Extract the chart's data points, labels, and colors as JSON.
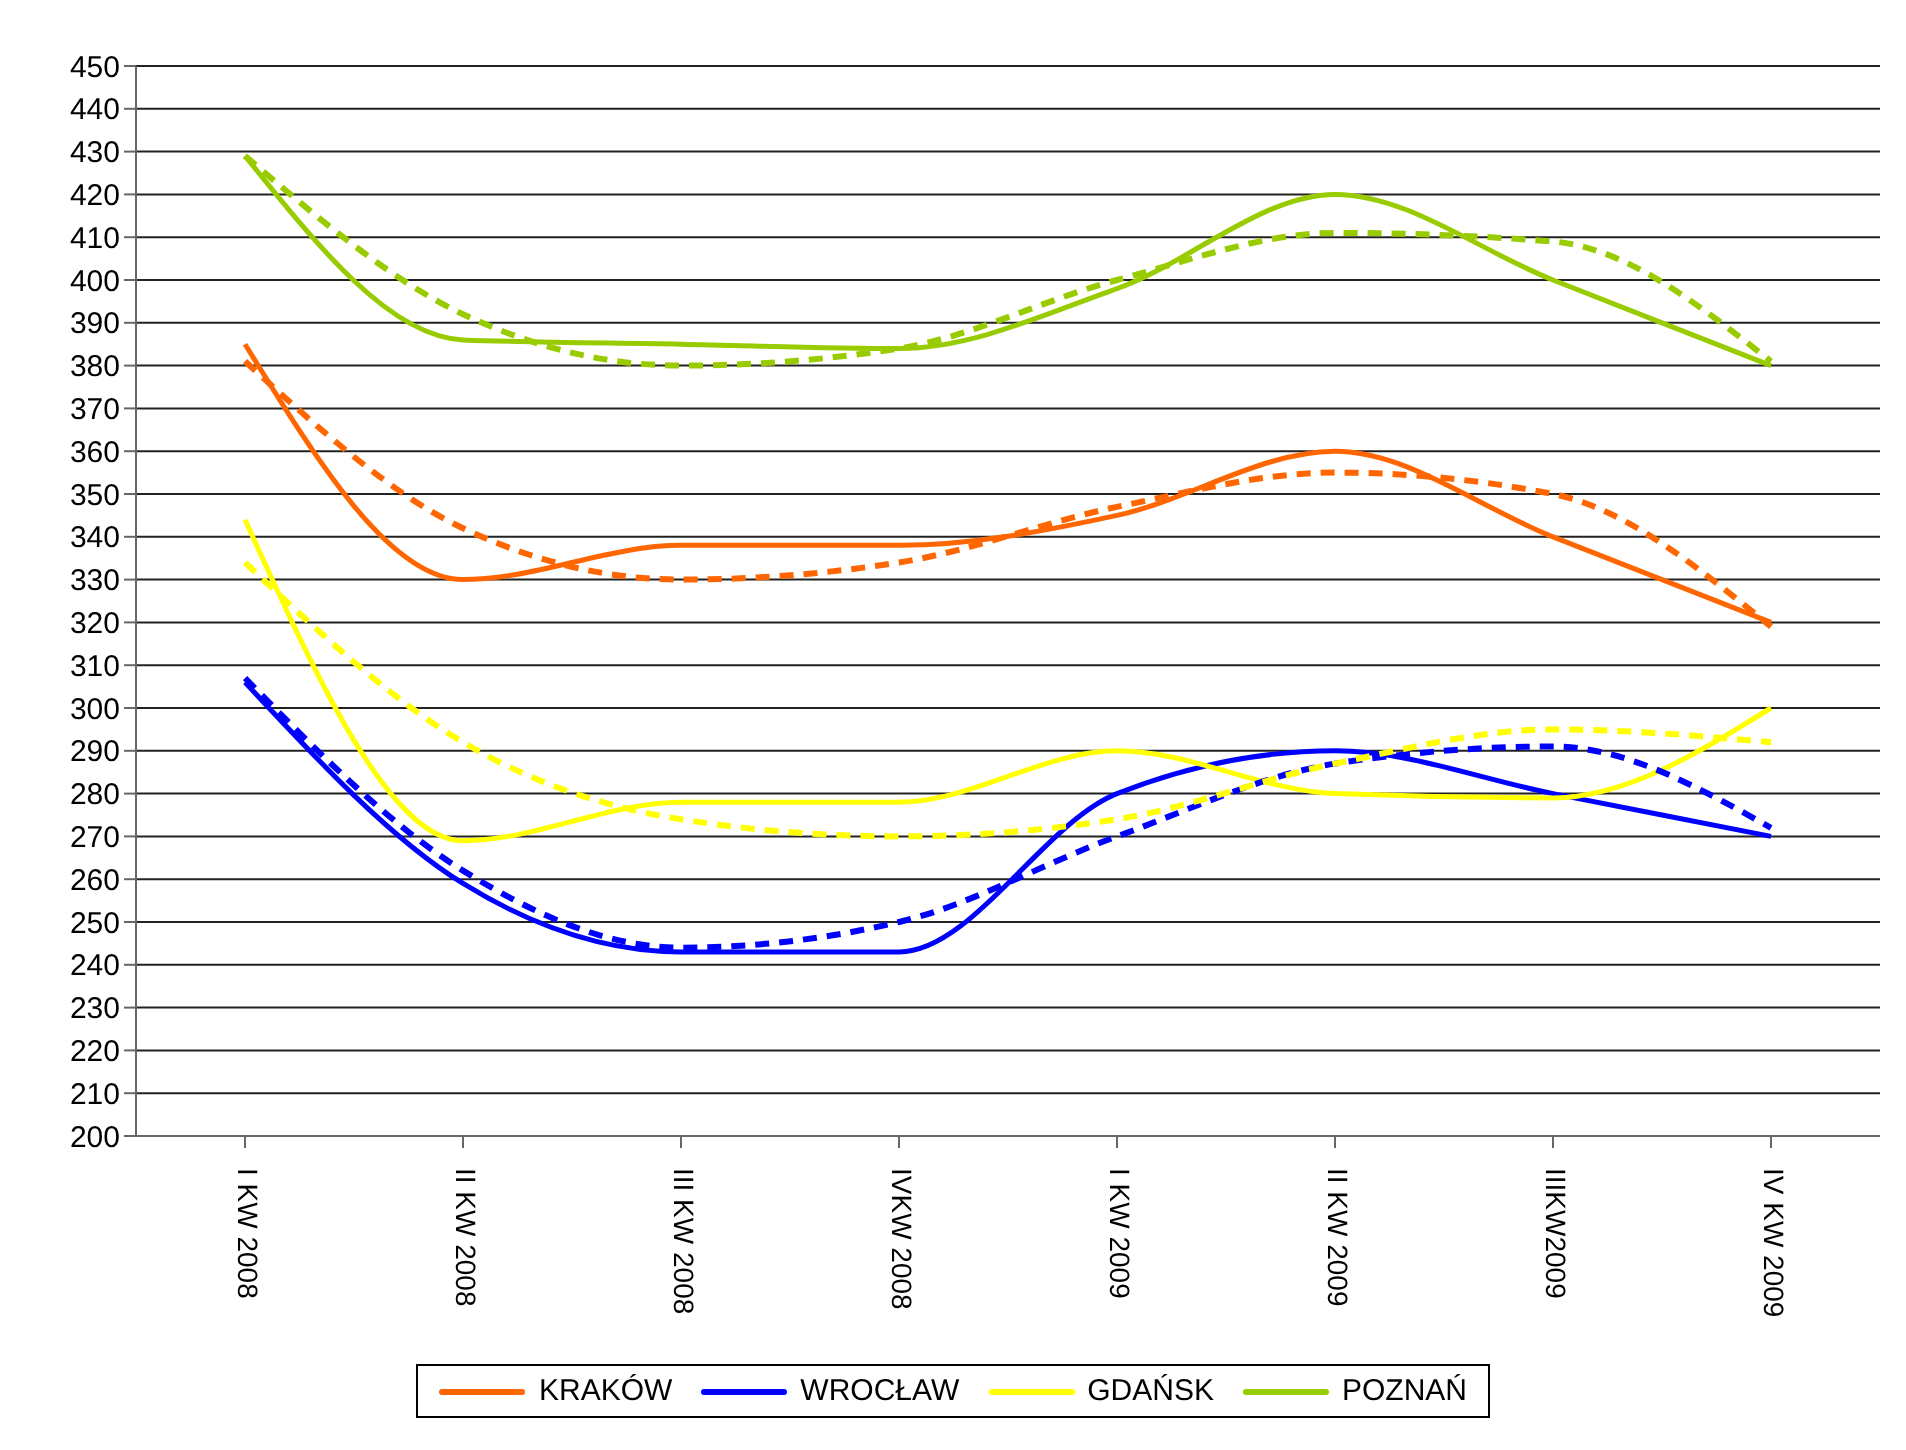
{
  "chart_data": {
    "type": "line",
    "categories": [
      "I KW 2008",
      "II KW 2008",
      "III KW 2008",
      "IVKW 2008",
      "I KW 2009",
      "II KW 2009",
      "IIIKW2009",
      "IV KW 2009"
    ],
    "series": [
      {
        "name": "KRAKÓW",
        "color": "#ff6600",
        "values": [
          385,
          330,
          338,
          338,
          345,
          360,
          340,
          320
        ]
      },
      {
        "name": "WROCŁAW",
        "color": "#0000ff",
        "values": [
          306,
          259,
          243,
          243,
          280,
          290,
          280,
          270
        ]
      },
      {
        "name": "GDAŃSK",
        "color": "#ffff00",
        "values": [
          344,
          269,
          278,
          278,
          290,
          280,
          279,
          300
        ]
      },
      {
        "name": "POZNAŃ",
        "color": "#99cc00",
        "values": [
          429,
          386,
          385,
          384,
          398,
          420,
          400,
          380
        ]
      },
      {
        "type": "line",
        "line_style": "dashed",
        "color": "#ff6600",
        "values": [
          381,
          342,
          330,
          334,
          347,
          355,
          350,
          319
        ]
      },
      {
        "type": "line",
        "line_style": "dashed",
        "color": "#0000ff",
        "values": [
          307,
          262,
          244,
          250,
          270,
          287,
          291,
          272
        ]
      },
      {
        "type": "line",
        "line_style": "dashed",
        "color": "#ffff00",
        "values": [
          334,
          292,
          274,
          270,
          274,
          287,
          295,
          292
        ]
      },
      {
        "type": "line",
        "line_style": "dashed",
        "color": "#99cc00",
        "values": [
          429,
          392,
          380,
          384,
          400,
          411,
          409,
          381
        ]
      }
    ],
    "ylim": [
      200,
      450
    ],
    "yticks": [
      200,
      210,
      220,
      230,
      240,
      250,
      260,
      270,
      280,
      290,
      300,
      310,
      320,
      330,
      340,
      350,
      360,
      370,
      380,
      390,
      400,
      410,
      420,
      430,
      440,
      450
    ],
    "grid": "y",
    "legend": "bottom",
    "line_style": "solid",
    "marker": "none"
  }
}
